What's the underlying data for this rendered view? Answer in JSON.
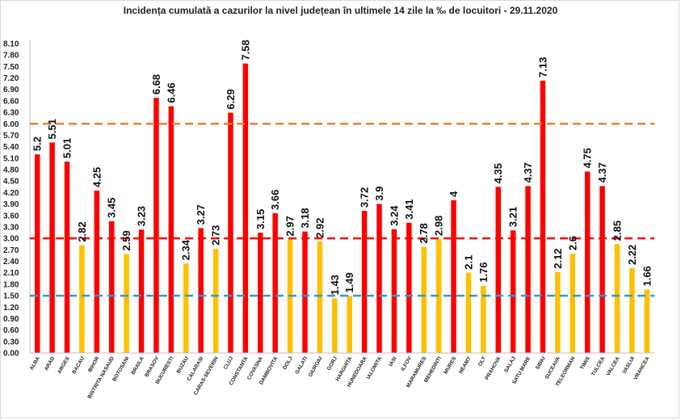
{
  "chart_data": {
    "type": "bar",
    "title": "Incidența cumulată a cazurilor la nivel județean în ultimele 14 zile la ‰ de locuitori - 29.11.2020",
    "xlabel": "",
    "ylabel": "",
    "ylim": [
      0,
      8.1
    ],
    "yticks": [
      "0.00",
      "0.30",
      "0.60",
      "0.90",
      "1.20",
      "1.50",
      "1.80",
      "2.10",
      "2.40",
      "2.70",
      "3.00",
      "3.30",
      "3.60",
      "3.90",
      "4.20",
      "4.50",
      "4.80",
      "5.10",
      "5.40",
      "5.70",
      "6.00",
      "6.30",
      "6.60",
      "6.90",
      "7.20",
      "7.50",
      "7.80",
      "8.10"
    ],
    "categories": [
      "ALBA",
      "ARAD",
      "ARGES",
      "BACAU",
      "BIHOR",
      "BISTRITA NASAUD",
      "BOTOSANI",
      "BRAILA",
      "BRASOV",
      "BUCURESTI",
      "BUZAU",
      "CALARASI",
      "CARAS-SEVERIN",
      "CLUJ",
      "CONSTANTA",
      "COVASNA",
      "DAMBOVITA",
      "DOLJ",
      "GALATI",
      "GIURGIU",
      "GORJ",
      "HARGHITA",
      "HUNEDOARA",
      "IALOMITA",
      "IASI",
      "ILFOV",
      "MARAMURES",
      "MEHEDINTI",
      "MURES",
      "NEAMT",
      "OLT",
      "PRAHOVA",
      "SALAJ",
      "SATU MARE",
      "SIBIU",
      "SUCEAVA",
      "TELEORMAN",
      "TIMIS",
      "TULCEA",
      "VALCEA",
      "VASLUI",
      "VRANCEA"
    ],
    "values": [
      5.2,
      5.51,
      5.01,
      2.82,
      4.25,
      3.45,
      2.59,
      3.23,
      6.68,
      6.46,
      2.34,
      3.27,
      2.73,
      6.29,
      7.58,
      3.15,
      3.66,
      2.97,
      3.18,
      2.92,
      1.43,
      1.49,
      3.72,
      3.9,
      3.24,
      3.41,
      2.78,
      2.98,
      4,
      2.1,
      1.76,
      4.35,
      3.21,
      4.37,
      7.13,
      2.12,
      2.6,
      4.75,
      4.37,
      2.85,
      2.22,
      1.66
    ],
    "value_labels": [
      "5.2",
      "5.51",
      "5.01",
      "2.82",
      "4.25",
      "3.45",
      "2.59",
      "3.23",
      "6.68",
      "6.46",
      "2.34",
      "3.27",
      "2.73",
      "6.29",
      "7.58",
      "3.15",
      "3.66",
      "2.97",
      "3.18",
      "2.92",
      "1.43",
      "1.49",
      "3.72",
      "3.9",
      "3.24",
      "3.41",
      "2.78",
      "2.98",
      "4",
      "2.1",
      "1.76",
      "4.35",
      "3.21",
      "4.37",
      "7.13",
      "2.12",
      "2.6",
      "4.75",
      "4.37",
      "2.85",
      "2.22",
      "1.66"
    ],
    "thresholds": [
      {
        "value": 6.0,
        "color": "#ED7D31"
      },
      {
        "value": 3.0,
        "color": "#FF0000"
      },
      {
        "value": 1.5,
        "color": "#2E9BD6"
      }
    ],
    "colors": {
      "high": "#FF0000",
      "low": "#FFC000"
    },
    "grid": false,
    "legend": "none"
  }
}
